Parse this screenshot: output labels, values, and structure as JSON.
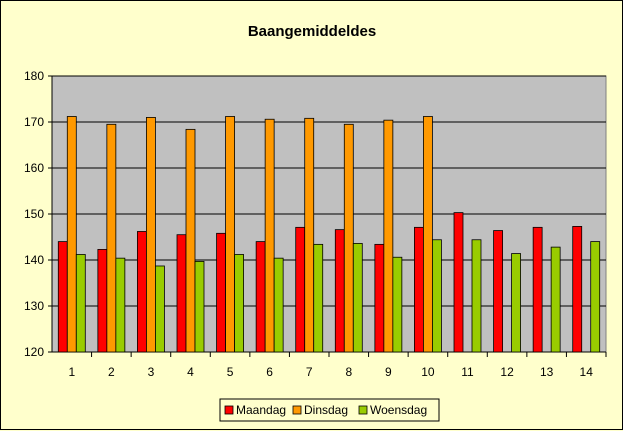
{
  "chart_data": {
    "type": "bar",
    "title": "Baangemiddeldes",
    "xlabel": "",
    "ylabel": "",
    "categories": [
      "1",
      "2",
      "3",
      "4",
      "5",
      "6",
      "7",
      "8",
      "9",
      "10",
      "11",
      "12",
      "13",
      "14"
    ],
    "ylim": [
      120,
      180
    ],
    "yticks": [
      120,
      130,
      140,
      150,
      160,
      170,
      180
    ],
    "grid": true,
    "legend_position": "bottom",
    "plot_background": "#c0c0c0",
    "series": [
      {
        "name": "Maandag",
        "color": "#ff0000",
        "values": [
          144.0,
          142.3,
          146.2,
          145.5,
          145.8,
          144.0,
          147.1,
          146.6,
          143.4,
          147.1,
          150.3,
          146.4,
          147.1,
          147.3
        ]
      },
      {
        "name": "Dinsdag",
        "color": "#ff9900",
        "values": [
          171.2,
          169.5,
          171.0,
          168.4,
          171.2,
          170.6,
          170.8,
          169.5,
          170.4,
          171.2,
          null,
          null,
          null,
          null
        ]
      },
      {
        "name": "Woensdag",
        "color": "#99cc00",
        "values": [
          141.2,
          140.4,
          138.7,
          139.7,
          141.2,
          140.4,
          143.4,
          143.6,
          140.6,
          144.4,
          144.4,
          141.4,
          142.8,
          144.0
        ]
      }
    ]
  }
}
